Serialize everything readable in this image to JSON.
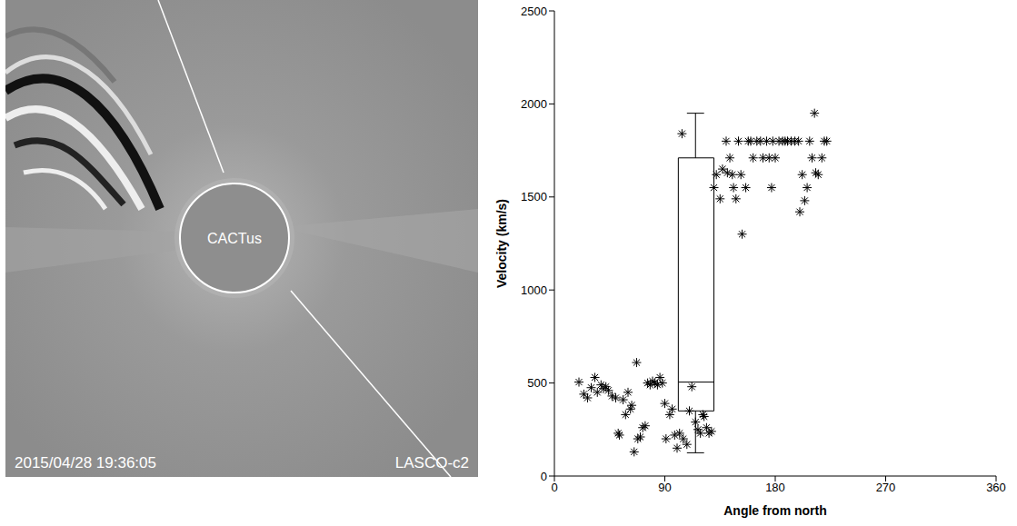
{
  "image": {
    "label": "CACTus",
    "timestamp": "2015/04/28 19:36:05",
    "instrument": "LASCO-c2"
  },
  "chart_data": {
    "type": "scatter",
    "x_label": "Angle from north",
    "y_label": "Velocity (km/s)",
    "xlim": [
      0,
      360
    ],
    "xticks": [
      0,
      90,
      180,
      270,
      360
    ],
    "ylim": [
      0,
      2500
    ],
    "yticks": [
      0,
      500,
      1000,
      1500,
      2000,
      2500
    ],
    "marker": "asterisk",
    "color": "#000000",
    "grid": false,
    "x": [
      20,
      24,
      27,
      30,
      33,
      35,
      38,
      40,
      42,
      44,
      47,
      50,
      52,
      53,
      56,
      58,
      60,
      62,
      63,
      65,
      67,
      68,
      70,
      72,
      74,
      76,
      78,
      80,
      82,
      84,
      86,
      88,
      90,
      91,
      94,
      96,
      98,
      100,
      102,
      105,
      108,
      110,
      112,
      115,
      117,
      119,
      121,
      122,
      124,
      126,
      128,
      104,
      130,
      132,
      135,
      137,
      140,
      141,
      143,
      145,
      146,
      148,
      150,
      152,
      153,
      156,
      158,
      160,
      162,
      165,
      168,
      170,
      173,
      175,
      177,
      178,
      180,
      183,
      186,
      188,
      190,
      193,
      196,
      199,
      200,
      202,
      204,
      206,
      208,
      210,
      212,
      213,
      215,
      218,
      220,
      222
    ],
    "values": [
      505,
      440,
      420,
      475,
      530,
      450,
      490,
      470,
      480,
      460,
      430,
      420,
      230,
      220,
      410,
      330,
      450,
      360,
      380,
      130,
      610,
      200,
      210,
      260,
      270,
      500,
      490,
      510,
      500,
      490,
      530,
      500,
      390,
      200,
      330,
      360,
      220,
      150,
      230,
      200,
      170,
      350,
      480,
      290,
      250,
      230,
      330,
      320,
      260,
      230,
      240,
      1840,
      1550,
      1620,
      1490,
      1650,
      1800,
      1630,
      1710,
      1620,
      1550,
      1490,
      1800,
      1620,
      1300,
      1550,
      1800,
      1800,
      1710,
      1800,
      1800,
      1710,
      1800,
      1710,
      1550,
      1800,
      1710,
      1800,
      1800,
      1800,
      1800,
      1800,
      1800,
      1800,
      1420,
      1620,
      1480,
      1550,
      1800,
      1710,
      1950,
      1630,
      1620,
      1710,
      1800,
      1800
    ],
    "box": {
      "x_start": 101,
      "x_end": 130,
      "x": 115,
      "cap_start": 108,
      "cap_end": 122,
      "whisker_low": 125,
      "q1": 350,
      "median": 505,
      "q3": 1710,
      "whisker_high": 1950
    }
  }
}
